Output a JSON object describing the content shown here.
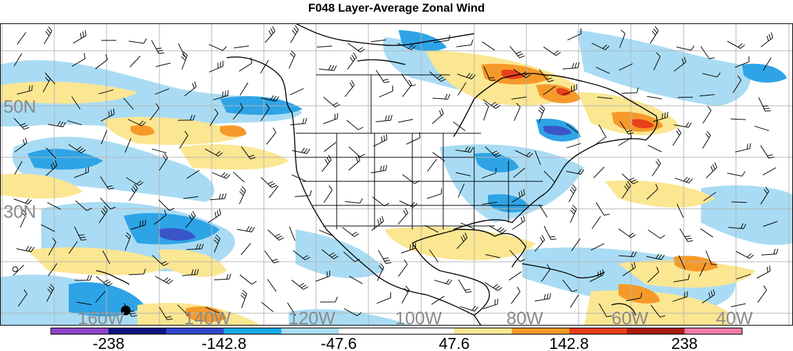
{
  "title": "F048 Layer-Average Zonal Wind",
  "map": {
    "lat_labels": [
      "50N",
      "30N"
    ],
    "lon_labels": [
      "160W",
      "140W",
      "120W",
      "100W",
      "80W",
      "60W",
      "40W"
    ],
    "label_color": "#8a8a8a",
    "grid_color": "#b4b4b4"
  },
  "colorbar": {
    "colors": [
      "#8e44c8",
      "#0d1280",
      "#3046c8",
      "#15a8e8",
      "#a9dcf4",
      "#ffffff",
      "#ffffff",
      "#fbe692",
      "#f59a2a",
      "#ec3a1a",
      "#a81c10",
      "#f07aa8"
    ],
    "tick_labels": [
      "-238",
      "-142.8",
      "-47.6",
      "47.6",
      "142.8",
      "238"
    ]
  },
  "legend_palette": {
    "strong_negative": "#3a55c8",
    "negative": "#2ea4e6",
    "weak_negative": "#a9dcf4",
    "weak_positive": "#fbe692",
    "positive": "#f59a2a",
    "strong_positive": "#e8401c"
  }
}
